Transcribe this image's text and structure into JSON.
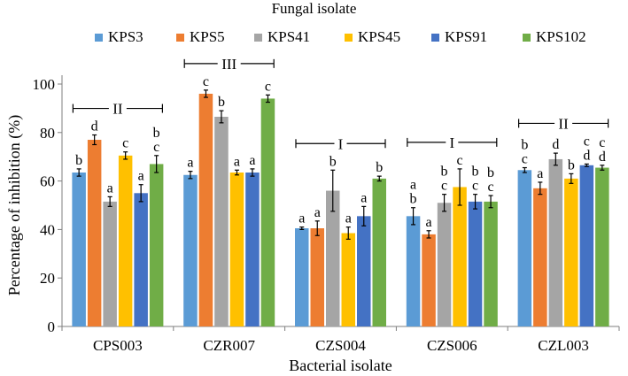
{
  "chart_data": {
    "type": "bar",
    "legend_title": "Fungal isolate",
    "legend_position": "top",
    "xlabel": "Bacterial isolate",
    "ylabel": "Percentage of inhibition (%)",
    "ylim": [
      0,
      100
    ],
    "yticks": [
      0,
      20,
      40,
      60,
      80,
      100
    ],
    "grid": false,
    "categories": [
      "CPS003",
      "CZR007",
      "CZS004",
      "CZS006",
      "CZL003"
    ],
    "series": [
      {
        "name": "KPS3",
        "color": "#5b9bd5",
        "values": [
          63.5,
          62.5,
          40.5,
          45.5,
          64.5
        ],
        "errors": [
          1.5,
          1.5,
          0.5,
          3.5,
          1.0
        ],
        "letters": [
          "b",
          "a",
          "a",
          "a\nb",
          "b\nc"
        ]
      },
      {
        "name": "KPS5",
        "color": "#ed7d31",
        "values": [
          77.0,
          96.0,
          40.5,
          38.0,
          57.0
        ],
        "errors": [
          2.0,
          1.5,
          3.0,
          1.5,
          2.5
        ],
        "letters": [
          "d",
          "c",
          "a",
          "a",
          "a"
        ]
      },
      {
        "name": "KPS41",
        "color": "#a5a5a5",
        "values": [
          51.5,
          86.5,
          56.0,
          51.0,
          69.0
        ],
        "errors": [
          2.0,
          2.5,
          8.5,
          3.5,
          2.5
        ],
        "letters": [
          "a",
          "b",
          "b",
          "b\nc",
          "d"
        ]
      },
      {
        "name": "KPS45",
        "color": "#ffc000",
        "values": [
          70.5,
          63.5,
          38.5,
          57.5,
          61.0
        ],
        "errors": [
          1.5,
          1.0,
          2.5,
          7.5,
          2.0
        ],
        "letters": [
          "c",
          "a",
          "a",
          "c",
          "b"
        ]
      },
      {
        "name": "KPS91",
        "color": "#4472c4",
        "values": [
          55.0,
          63.5,
          45.5,
          51.5,
          66.5
        ],
        "errors": [
          3.5,
          1.5,
          4.0,
          3.0,
          0.5
        ],
        "letters": [
          "a",
          "a",
          "a",
          "b\nc",
          "c\nd"
        ]
      },
      {
        "name": "KPS102",
        "color": "#70ad47",
        "values": [
          67.0,
          94.0,
          61.0,
          51.5,
          65.5
        ],
        "errors": [
          3.5,
          1.5,
          1.0,
          2.5,
          1.0
        ],
        "letters": [
          "b\nc",
          "c",
          "b",
          "b\nc",
          "c\nd"
        ]
      }
    ],
    "group_brackets": [
      {
        "category": "CPS003",
        "label": "II"
      },
      {
        "category": "CZR007",
        "label": "III"
      },
      {
        "category": "CZS004",
        "label": "I"
      },
      {
        "category": "CZS006",
        "label": "I"
      },
      {
        "category": "CZL003",
        "label": "II"
      }
    ]
  }
}
